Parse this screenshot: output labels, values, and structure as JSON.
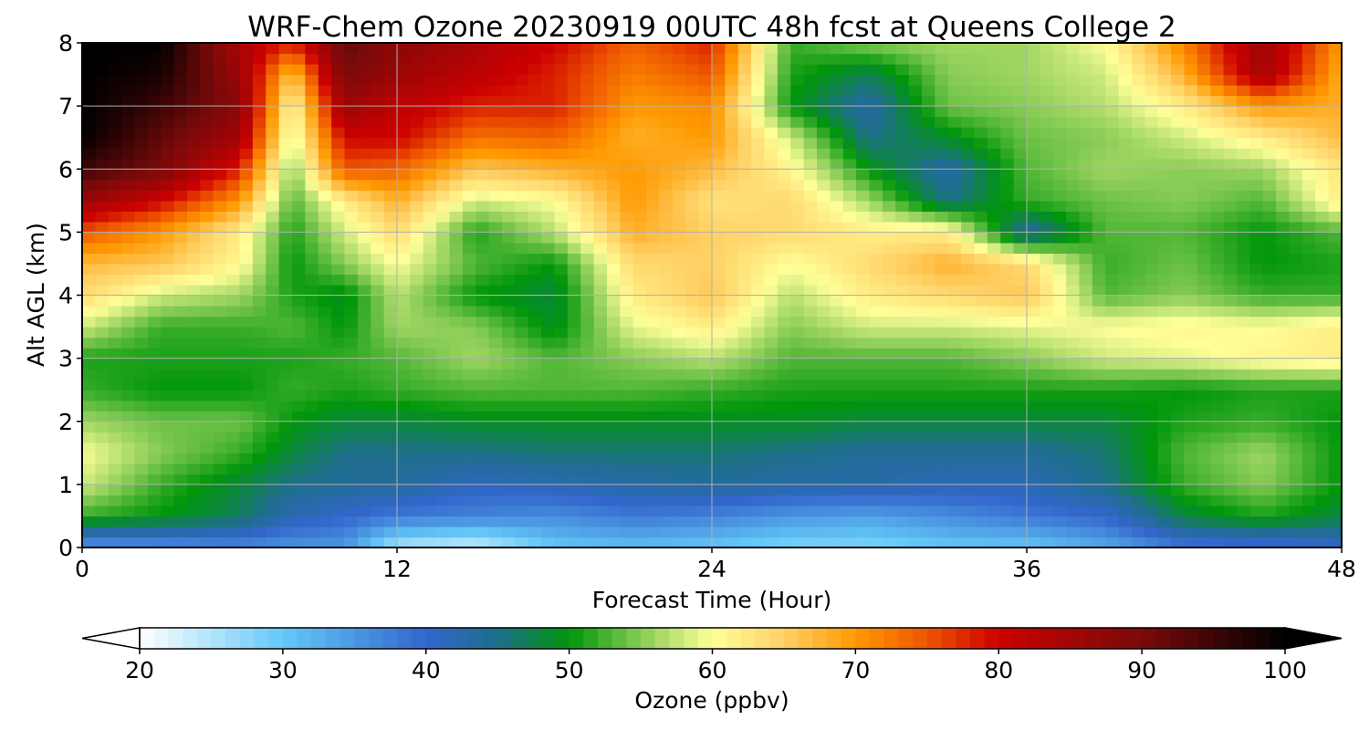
{
  "chart_data": {
    "type": "heatmap",
    "title": "WRF-Chem Ozone  20230919 00UTC 48h fcst at Queens College 2",
    "xlabel": "Forecast Time (Hour)",
    "ylabel": "Alt AGL (km)",
    "xlim": [
      0,
      48
    ],
    "ylim": [
      0,
      8
    ],
    "xticks": [
      0,
      12,
      24,
      36,
      48
    ],
    "yticks": [
      0,
      1,
      2,
      3,
      4,
      5,
      6,
      7,
      8
    ],
    "grid": true,
    "z_units": "ppbv",
    "x": [
      0,
      3,
      6,
      8,
      10,
      12,
      15,
      18,
      21,
      24,
      27,
      30,
      33,
      36,
      39,
      42,
      45,
      48
    ],
    "y": [
      0,
      0.5,
      1,
      1.5,
      2,
      2.5,
      3,
      3.5,
      4,
      4.5,
      5,
      5.5,
      6,
      6.5,
      7,
      7.5,
      8
    ],
    "z": [
      [
        34,
        35,
        36,
        35,
        35,
        25,
        23,
        30,
        31,
        30,
        28,
        28,
        30,
        30,
        33,
        38,
        38,
        40
      ],
      [
        52,
        50,
        47,
        42,
        40,
        38,
        37,
        36,
        38,
        37,
        35,
        34,
        36,
        38,
        40,
        48,
        51,
        48
      ],
      [
        58,
        52,
        48,
        45,
        44,
        44,
        41,
        42,
        43,
        44,
        43,
        43,
        42,
        42,
        45,
        52,
        55,
        50
      ],
      [
        60,
        55,
        52,
        48,
        45,
        45,
        45,
        46,
        46,
        46,
        45,
        44,
        44,
        44,
        46,
        53,
        56,
        50
      ],
      [
        56,
        54,
        54,
        50,
        48,
        48,
        49,
        49,
        49,
        49,
        49,
        48,
        48,
        48,
        48,
        51,
        52,
        50
      ],
      [
        52,
        50,
        50,
        52,
        51,
        52,
        53,
        53,
        53,
        52,
        51,
        51,
        51,
        51,
        51,
        50,
        51,
        51
      ],
      [
        51,
        51,
        51,
        51,
        52,
        53,
        56,
        53,
        55,
        57,
        53,
        53,
        53,
        55,
        58,
        59,
        61,
        62
      ],
      [
        58,
        52,
        52,
        53,
        50,
        56,
        55,
        49,
        59,
        62,
        55,
        58,
        58,
        59,
        60,
        61,
        60,
        62
      ],
      [
        64,
        58,
        56,
        51,
        49,
        57,
        50,
        48,
        62,
        66,
        57,
        62,
        64,
        66,
        53,
        55,
        52,
        52
      ],
      [
        67,
        66,
        61,
        50,
        55,
        60,
        53,
        50,
        64,
        65,
        60,
        64,
        68,
        64,
        52,
        54,
        50,
        51
      ],
      [
        75,
        70,
        62,
        51,
        58,
        64,
        51,
        57,
        68,
        65,
        64,
        62,
        62,
        43,
        53,
        53,
        50,
        53
      ],
      [
        86,
        80,
        70,
        53,
        62,
        68,
        58,
        60,
        70,
        63,
        64,
        56,
        45,
        52,
        54,
        55,
        53,
        62
      ],
      [
        95,
        90,
        78,
        55,
        75,
        74,
        66,
        68,
        70,
        67,
        61,
        50,
        43,
        53,
        56,
        55,
        56,
        63
      ],
      [
        100,
        92,
        85,
        58,
        80,
        80,
        73,
        74,
        68,
        70,
        58,
        45,
        49,
        54,
        55,
        58,
        62,
        67
      ],
      [
        100,
        95,
        88,
        60,
        86,
        82,
        78,
        78,
        70,
        71,
        50,
        43,
        54,
        55,
        57,
        62,
        70,
        68
      ],
      [
        100,
        98,
        86,
        66,
        90,
        86,
        82,
        78,
        72,
        75,
        51,
        47,
        55,
        56,
        58,
        68,
        85,
        68
      ],
      [
        100,
        100,
        84,
        78,
        92,
        88,
        84,
        80,
        74,
        78,
        52,
        55,
        56,
        56,
        60,
        72,
        86,
        70
      ]
    ],
    "colorbar": {
      "label": "Ozone  (ppbv)",
      "min": 20,
      "max": 100,
      "ticks": [
        "20",
        "30",
        "40",
        "50",
        "60",
        "70",
        "80",
        "90",
        "100"
      ],
      "extend": "both",
      "stops": [
        {
          "v": 20,
          "c": "#ffffff"
        },
        {
          "v": 30,
          "c": "#64c8f8"
        },
        {
          "v": 40,
          "c": "#3366cc"
        },
        {
          "v": 45,
          "c": "#1e6e8c"
        },
        {
          "v": 50,
          "c": "#00960a"
        },
        {
          "v": 55,
          "c": "#88cc55"
        },
        {
          "v": 60,
          "c": "#ffff99"
        },
        {
          "v": 65,
          "c": "#ffd166"
        },
        {
          "v": 70,
          "c": "#ff9900"
        },
        {
          "v": 75,
          "c": "#ee5500"
        },
        {
          "v": 80,
          "c": "#cc0000"
        },
        {
          "v": 90,
          "c": "#7a0a0a"
        },
        {
          "v": 100,
          "c": "#000000"
        }
      ]
    }
  }
}
